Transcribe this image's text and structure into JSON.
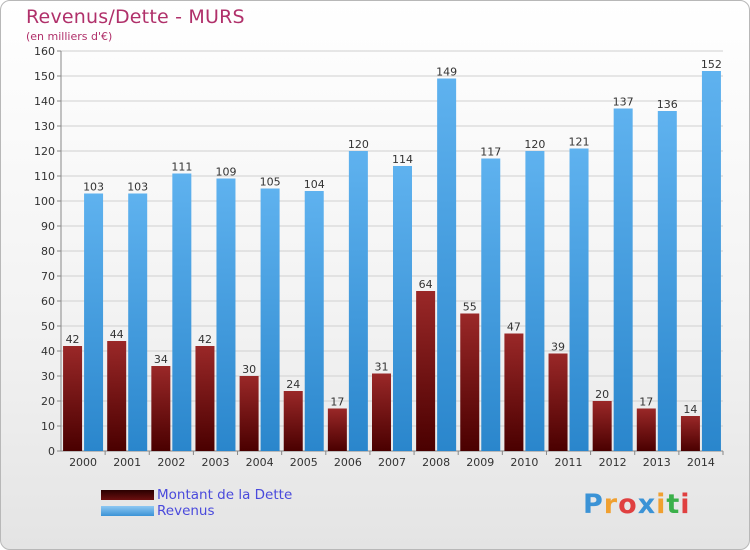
{
  "title": "Revenus/Dette - MURS",
  "subtitle": "(en milliers d'€)",
  "legend": [
    {
      "label": "Montant de la Dette",
      "color": "#6b0f0f"
    },
    {
      "label": "Revenus",
      "color": "#3b93d6"
    }
  ],
  "logo_text": "Proxiti",
  "chart_data": {
    "type": "bar",
    "title": "Revenus/Dette - MURS",
    "ylabel": "(en milliers d'€)",
    "xlabel": "",
    "categories": [
      "2000",
      "2001",
      "2002",
      "2003",
      "2004",
      "2005",
      "2006",
      "2007",
      "2008",
      "2009",
      "2010",
      "2011",
      "2012",
      "2013",
      "2014"
    ],
    "series": [
      {
        "name": "Montant de la Dette",
        "color": "#8b1e1e",
        "values": [
          42,
          44,
          34,
          42,
          30,
          24,
          17,
          31,
          64,
          55,
          47,
          39,
          20,
          17,
          14
        ]
      },
      {
        "name": "Revenus",
        "color": "#4aa3e8",
        "values": [
          103,
          103,
          111,
          109,
          105,
          104,
          120,
          114,
          149,
          117,
          120,
          121,
          137,
          136,
          152
        ]
      }
    ],
    "ylim": [
      0,
      160
    ],
    "yticks": [
      0,
      10,
      20,
      30,
      40,
      50,
      60,
      70,
      80,
      90,
      100,
      110,
      120,
      130,
      140,
      150,
      160
    ],
    "grid": true,
    "legend_position": "bottom-left"
  }
}
